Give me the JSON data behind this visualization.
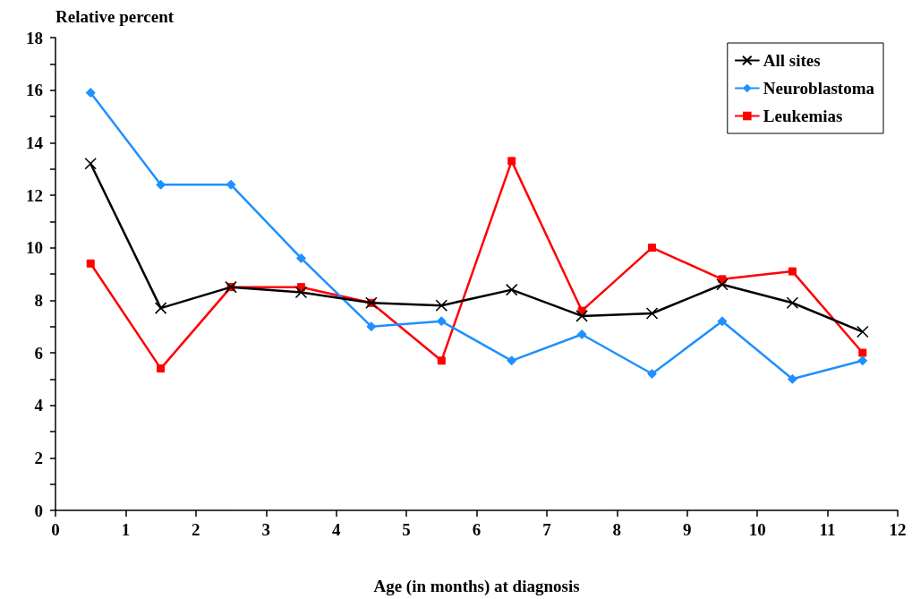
{
  "chart_data": {
    "type": "line",
    "ylabel": "Relative percent",
    "xlabel": "Age (in months) at diagnosis",
    "x": [
      0.5,
      1.5,
      2.5,
      3.5,
      4.5,
      5.5,
      6.5,
      7.5,
      8.5,
      9.5,
      10.5,
      11.5
    ],
    "series": [
      {
        "name": "All sites",
        "color": "#000000",
        "marker": "cross",
        "values": [
          13.2,
          7.7,
          8.5,
          8.3,
          7.9,
          7.8,
          8.4,
          7.4,
          7.5,
          8.6,
          7.9,
          6.8
        ]
      },
      {
        "name": "Neuroblastoma",
        "color": "#1e90ff",
        "marker": "diamond",
        "values": [
          15.9,
          12.4,
          12.4,
          9.6,
          7.0,
          7.2,
          5.7,
          6.7,
          5.2,
          7.2,
          5.0,
          5.7
        ]
      },
      {
        "name": "Leukemias",
        "color": "#ff0000",
        "marker": "square",
        "values": [
          9.4,
          5.4,
          8.5,
          8.5,
          7.9,
          5.7,
          13.3,
          7.6,
          10.0,
          8.8,
          9.1,
          6.0
        ]
      }
    ],
    "xlim": [
      0,
      12
    ],
    "xticks": [
      0,
      1,
      2,
      3,
      4,
      5,
      6,
      7,
      8,
      9,
      10,
      11,
      12
    ],
    "ylim": [
      0,
      18
    ],
    "yticks": [
      0,
      {
        "value": 1,
        "label": null
      },
      2,
      {
        "value": 3,
        "label": null
      },
      4,
      {
        "value": 5,
        "label": null
      },
      6,
      {
        "value": 7,
        "label": null
      },
      8,
      {
        "value": 9,
        "label": null
      },
      10,
      {
        "value": 11,
        "label": null
      },
      12,
      {
        "value": 13,
        "label": null
      },
      14,
      {
        "value": 15,
        "label": null
      },
      16,
      {
        "value": 17,
        "label": null
      },
      18
    ],
    "grid": false,
    "legend": "top right",
    "line_style": "solid"
  }
}
